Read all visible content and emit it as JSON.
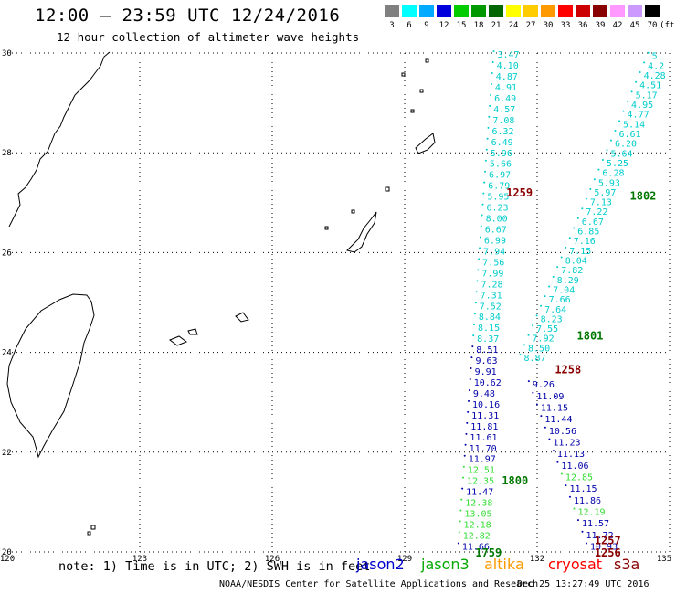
{
  "header": {
    "title": "12:00 – 23:59 UTC 12/24/2016",
    "subtitle": "12 hour collection of altimeter wave heights"
  },
  "legend": {
    "unit": "(ft)",
    "swatches": [
      {
        "label": "3",
        "color": "#808080"
      },
      {
        "label": "6",
        "color": "#00ffff"
      },
      {
        "label": "9",
        "color": "#00aaff"
      },
      {
        "label": "12",
        "color": "#0000dd"
      },
      {
        "label": "15",
        "color": "#00cc00"
      },
      {
        "label": "18",
        "color": "#009900"
      },
      {
        "label": "21",
        "color": "#006600"
      },
      {
        "label": "24",
        "color": "#ffff00"
      },
      {
        "label": "27",
        "color": "#ffcc00"
      },
      {
        "label": "30",
        "color": "#ff9900"
      },
      {
        "label": "33",
        "color": "#ff0000"
      },
      {
        "label": "36",
        "color": "#cc0000"
      },
      {
        "label": "39",
        "color": "#880000"
      },
      {
        "label": "42",
        "color": "#ff99ff"
      },
      {
        "label": "45",
        "color": "#cc99ff"
      },
      {
        "label": "70",
        "color": "#000000"
      }
    ]
  },
  "map": {
    "lon_labels": [
      "120",
      "123",
      "126",
      "129",
      "132",
      "135"
    ],
    "lat_labels": [
      "30",
      "28",
      "26",
      "24",
      "22",
      "20"
    ],
    "lon_range": [
      120,
      135
    ],
    "lat_range": [
      20,
      30
    ],
    "grid": "dotted",
    "colors": {
      "cyan": "#00cccc",
      "blue": "#0000aa",
      "green": "#33dd33",
      "dkgreen": "#007700",
      "dkred": "#8b0000"
    },
    "track_a": [
      {
        "v": "3.47",
        "c": "cyan"
      },
      {
        "v": "4.10",
        "c": "cyan"
      },
      {
        "v": "4.87",
        "c": "cyan"
      },
      {
        "v": "4.91",
        "c": "cyan"
      },
      {
        "v": "6.49",
        "c": "cyan"
      },
      {
        "v": "4.57",
        "c": "cyan"
      },
      {
        "v": "7.08",
        "c": "cyan"
      },
      {
        "v": "6.32",
        "c": "cyan"
      },
      {
        "v": "6.49",
        "c": "cyan"
      },
      {
        "v": "5.96",
        "c": "cyan"
      },
      {
        "v": "5.66",
        "c": "cyan"
      },
      {
        "v": "6.97",
        "c": "cyan"
      },
      {
        "v": "6.79",
        "c": "cyan"
      },
      {
        "v": "5.95",
        "c": "cyan"
      },
      {
        "v": "6.23",
        "c": "cyan"
      },
      {
        "v": "8.00",
        "c": "cyan"
      },
      {
        "v": "6.67",
        "c": "cyan"
      },
      {
        "v": "6.99",
        "c": "cyan"
      },
      {
        "v": "7.94",
        "c": "cyan"
      },
      {
        "v": "7.56",
        "c": "cyan"
      },
      {
        "v": "7.99",
        "c": "cyan"
      },
      {
        "v": "7.28",
        "c": "cyan"
      },
      {
        "v": "7.31",
        "c": "cyan"
      },
      {
        "v": "7.52",
        "c": "cyan"
      },
      {
        "v": "8.84",
        "c": "cyan"
      },
      {
        "v": "8.15",
        "c": "cyan"
      },
      {
        "v": "8.37",
        "c": "cyan"
      },
      {
        "v": "8.51",
        "c": "blue"
      },
      {
        "v": "9.63",
        "c": "blue"
      },
      {
        "v": "9.91",
        "c": "blue"
      },
      {
        "v": "10.62",
        "c": "blue"
      },
      {
        "v": "9.48",
        "c": "blue"
      },
      {
        "v": "10.16",
        "c": "blue"
      },
      {
        "v": "11.31",
        "c": "blue"
      },
      {
        "v": "11.81",
        "c": "blue"
      },
      {
        "v": "11.61",
        "c": "blue"
      },
      {
        "v": "11.70",
        "c": "blue"
      },
      {
        "v": "11.97",
        "c": "blue"
      },
      {
        "v": "12.51",
        "c": "green"
      },
      {
        "v": "12.35",
        "c": "green"
      },
      {
        "v": "11.47",
        "c": "blue"
      },
      {
        "v": "12.38",
        "c": "green"
      },
      {
        "v": "13.05",
        "c": "green"
      },
      {
        "v": "12.18",
        "c": "green"
      },
      {
        "v": "12.82",
        "c": "green"
      },
      {
        "v": "11.66",
        "c": "blue"
      }
    ],
    "track_b": [
      {
        "v": "5.",
        "c": "cyan"
      },
      {
        "v": "4.2",
        "c": "cyan"
      },
      {
        "v": "4.28",
        "c": "cyan"
      },
      {
        "v": "4.51",
        "c": "cyan"
      },
      {
        "v": "5.17",
        "c": "cyan"
      },
      {
        "v": "4.95",
        "c": "cyan"
      },
      {
        "v": "4.77",
        "c": "cyan"
      },
      {
        "v": "5.14",
        "c": "cyan"
      },
      {
        "v": "6.61",
        "c": "cyan"
      },
      {
        "v": "6.20",
        "c": "cyan"
      },
      {
        "v": "5.64",
        "c": "cyan"
      },
      {
        "v": "5.25",
        "c": "cyan"
      },
      {
        "v": "6.28",
        "c": "cyan"
      },
      {
        "v": "5.93",
        "c": "cyan"
      },
      {
        "v": "5.97",
        "c": "cyan"
      },
      {
        "v": "7.13",
        "c": "cyan"
      },
      {
        "v": "7.22",
        "c": "cyan"
      },
      {
        "v": "6.67",
        "c": "cyan"
      },
      {
        "v": "6.85",
        "c": "cyan"
      },
      {
        "v": "7.16",
        "c": "cyan"
      },
      {
        "v": "7.15",
        "c": "cyan"
      },
      {
        "v": "8.04",
        "c": "cyan"
      },
      {
        "v": "7.82",
        "c": "cyan"
      },
      {
        "v": "8.29",
        "c": "cyan"
      },
      {
        "v": "7.04",
        "c": "cyan"
      },
      {
        "v": "7.66",
        "c": "cyan"
      },
      {
        "v": "7.64",
        "c": "cyan"
      },
      {
        "v": "8.23",
        "c": "cyan"
      },
      {
        "v": "7.55",
        "c": "cyan"
      },
      {
        "v": "7.92",
        "c": "cyan"
      },
      {
        "v": "8.50",
        "c": "cyan"
      },
      {
        "v": "8.87",
        "c": "cyan"
      },
      {
        "v": "9.26",
        "c": "blue"
      },
      {
        "v": "11.09",
        "c": "blue"
      },
      {
        "v": "11.15",
        "c": "blue"
      },
      {
        "v": "11.44",
        "c": "blue"
      },
      {
        "v": "10.56",
        "c": "blue"
      },
      {
        "v": "11.23",
        "c": "blue"
      },
      {
        "v": "11.13",
        "c": "blue"
      },
      {
        "v": "11.06",
        "c": "blue"
      },
      {
        "v": "12.85",
        "c": "green"
      },
      {
        "v": "11.15",
        "c": "blue"
      },
      {
        "v": "11.86",
        "c": "blue"
      },
      {
        "v": "12.19",
        "c": "green"
      },
      {
        "v": "11.57",
        "c": "blue"
      },
      {
        "v": "11.72",
        "c": "blue"
      },
      {
        "v": "10.93",
        "c": "blue"
      }
    ],
    "time_labels": [
      {
        "t": "1259",
        "c": "dkred",
        "lon": 131.3,
        "lat": 27.22
      },
      {
        "t": "1802",
        "c": "dkgreen",
        "lon": 134.1,
        "lat": 27.15
      },
      {
        "t": "1801",
        "c": "dkgreen",
        "lon": 132.9,
        "lat": 24.35
      },
      {
        "t": "1258",
        "c": "dkred",
        "lon": 132.4,
        "lat": 23.67
      },
      {
        "t": "1800",
        "c": "dkgreen",
        "lon": 131.2,
        "lat": 21.45
      },
      {
        "t": "1257",
        "c": "dkred",
        "lon": 133.3,
        "lat": 20.25
      },
      {
        "t": "1256",
        "c": "dkred",
        "lon": 133.3,
        "lat": 20.0
      },
      {
        "t": "1759",
        "c": "dkgreen",
        "lon": 130.6,
        "lat": 20.0
      }
    ]
  },
  "note": "note: 1) Time is in UTC; 2) SWH is in feet",
  "satellites": [
    {
      "name": "jason2",
      "color": "#0000cc"
    },
    {
      "name": "jason3",
      "color": "#00aa00"
    },
    {
      "name": "altika",
      "color": "#ff9900"
    },
    {
      "name": "cryosat",
      "color": "#ff0000"
    },
    {
      "name": "s3a",
      "color": "#8b0000"
    }
  ],
  "footer": {
    "center": "NOAA/NESDIS Center for Satellite Applications and Research",
    "timestamp": "Dec 25 13:27:49 UTC 2016"
  }
}
